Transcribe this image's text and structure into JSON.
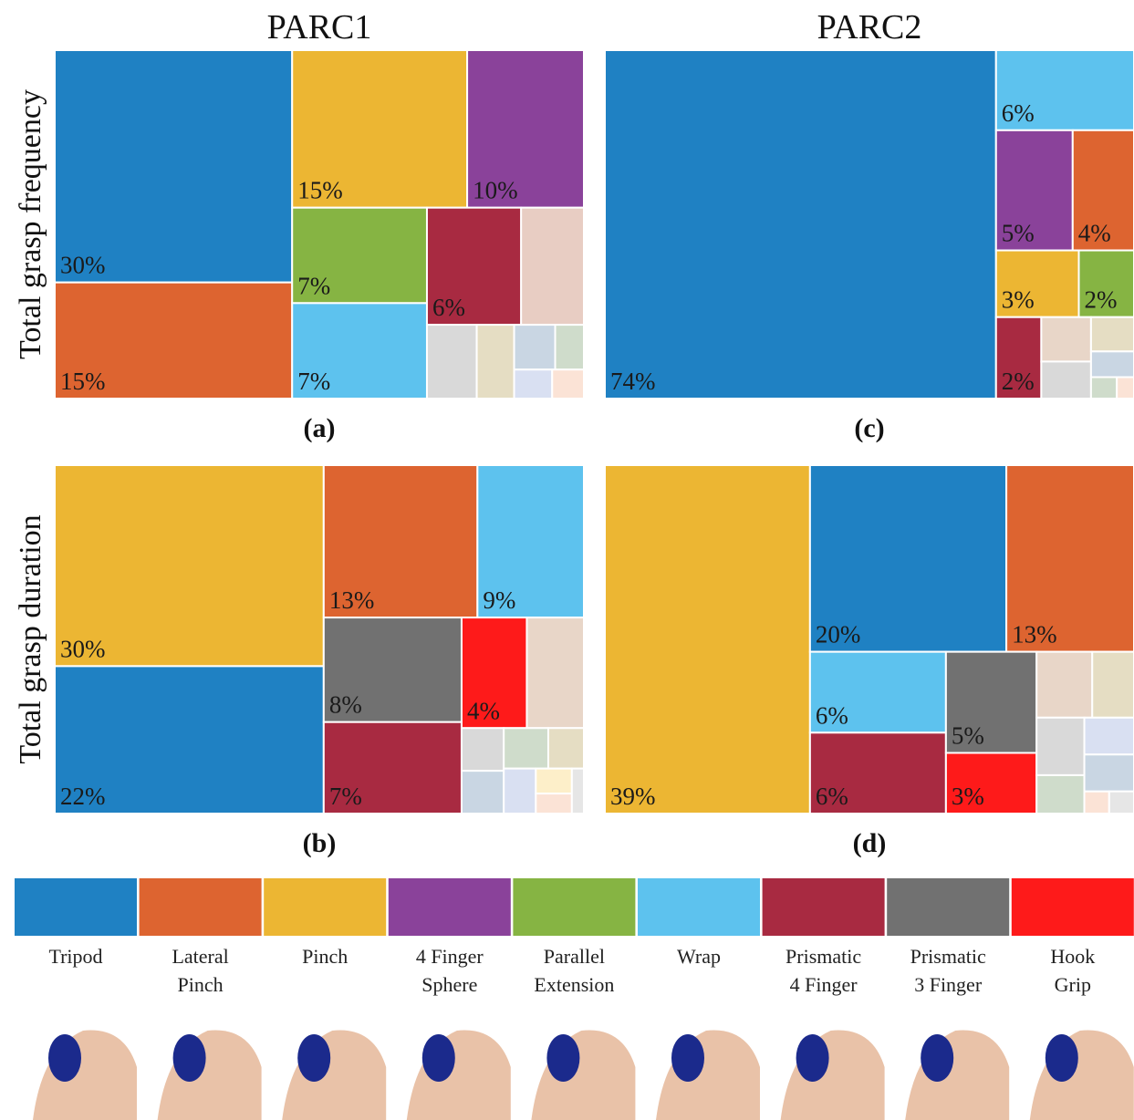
{
  "chart_data": [
    {
      "type": "treemap",
      "title": "PARC1",
      "ylabel": "Total grasp frequency",
      "caption": "(a)",
      "values": [
        30,
        15,
        15,
        10,
        7,
        7,
        6,
        4,
        2,
        1.5,
        1,
        0.7,
        0.6,
        0.5
      ],
      "value_labels": [
        "30%",
        "15%",
        "15%",
        "10%",
        "7%",
        "7%",
        "6%",
        null,
        null,
        null,
        null,
        null,
        null,
        null
      ],
      "colors": [
        "#1f81c3",
        "#dd6430",
        "#ecb633",
        "#8a429a",
        "#86b443",
        "#5dc2ee",
        "#a82a41",
        "#e8cdc3",
        "#d9d9d9",
        "#e5ddc3",
        "#c9d6e3",
        "#cfdccb",
        "#d9e0f2",
        "#fbe3d6"
      ]
    },
    {
      "type": "treemap",
      "ylabel": "Total grasp duration",
      "caption": "(b)",
      "values": [
        30,
        22,
        13,
        9,
        8,
        7,
        4,
        3.5,
        1,
        1,
        1,
        0.8,
        0.8,
        0.5,
        0.4,
        0.3
      ],
      "value_labels": [
        "30%",
        "22%",
        "13%",
        "9%",
        "8%",
        "7%",
        "4%",
        null,
        null,
        null,
        null,
        null,
        null,
        null,
        null,
        null
      ],
      "colors": [
        "#ecb633",
        "#1f81c3",
        "#dd6430",
        "#5dc2ee",
        "#717171",
        "#a82a41",
        "#fe1a1a",
        "#e8d6c8",
        "#d9d9d9",
        "#c9d6e3",
        "#cfdccb",
        "#e5ddc3",
        "#d9e0f2",
        "#fdefc9",
        "#fbe3d6",
        "#e6e6e6"
      ]
    },
    {
      "type": "treemap",
      "title": "PARC2",
      "caption": "(c)",
      "values": [
        74,
        6,
        5,
        4,
        3,
        2,
        2,
        1.2,
        1,
        0.8,
        0.6,
        0.3,
        0.2
      ],
      "value_labels": [
        "74%",
        "6%",
        "5%",
        "4%",
        "3%",
        "2%",
        "2%",
        null,
        null,
        null,
        null,
        null,
        null
      ],
      "colors": [
        "#1f81c3",
        "#5dc2ee",
        "#8a429a",
        "#dd6430",
        "#ecb633",
        "#86b443",
        "#a82a41",
        "#e8d6c8",
        "#d9d9d9",
        "#e5ddc3",
        "#c9d6e3",
        "#cfdccb",
        "#fbe3d6"
      ]
    },
    {
      "type": "treemap",
      "caption": "(d)",
      "values": [
        39,
        20,
        13,
        6,
        6,
        5,
        3,
        2,
        1.5,
        1.5,
        1,
        1,
        1,
        0.3,
        0.3
      ],
      "value_labels": [
        "39%",
        "20%",
        "13%",
        "6%",
        "6%",
        "5%",
        "3%",
        null,
        null,
        null,
        null,
        null,
        null,
        null,
        null
      ],
      "colors": [
        "#ecb633",
        "#1f81c3",
        "#dd6430",
        "#5dc2ee",
        "#a82a41",
        "#717171",
        "#fe1a1a",
        "#e8d6c8",
        "#e5ddc3",
        "#d9d9d9",
        "#cfdccb",
        "#d9e0f2",
        "#c9d6e3",
        "#fbe3d6",
        "#e6e6e6"
      ]
    }
  ],
  "legend": [
    {
      "name": "Tripod",
      "color": "#1f81c3"
    },
    {
      "name": "Lateral Pinch",
      "color": "#dd6430"
    },
    {
      "name": "Pinch",
      "color": "#ecb633"
    },
    {
      "name": "4 Finger Sphere",
      "color": "#8a429a"
    },
    {
      "name": "Parallel Extension",
      "color": "#86b443"
    },
    {
      "name": "Wrap",
      "color": "#5dc2ee"
    },
    {
      "name": "Prismatic 4 Finger",
      "color": "#a82a41"
    },
    {
      "name": "Prismatic 3 Finger",
      "color": "#717171"
    },
    {
      "name": "Hook Grip",
      "color": "#fe1a1a"
    }
  ]
}
